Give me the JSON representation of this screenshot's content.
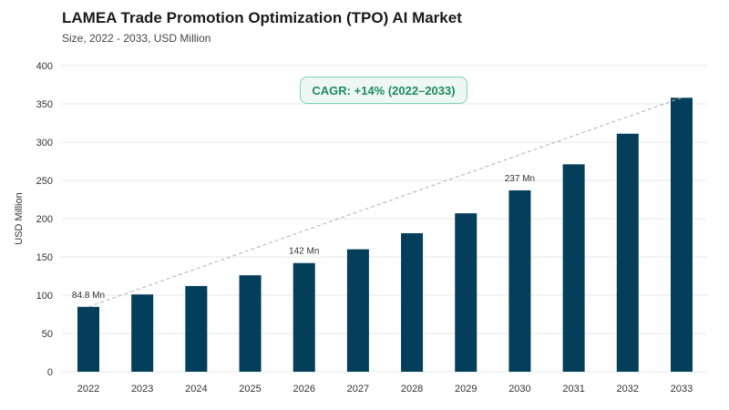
{
  "header": {
    "title": "LAMEA Trade Promotion Optimization (TPO) AI Market",
    "subtitle": "Size, 2022 - 2033, USD Million"
  },
  "annotation": {
    "cagr": "CAGR: +14% (2022–2033)"
  },
  "colors": {
    "bar": "#033e5b",
    "grid": "#e5e7eb",
    "trend": "#b0b0b0",
    "cagr_text": "#1e8a63",
    "cagr_border": "#7fd1b5"
  },
  "chart_data": {
    "type": "bar",
    "title": "LAMEA Trade Promotion Optimization (TPO) AI Market",
    "subtitle": "Size, 2022 - 2033, USD Million",
    "xlabel": "",
    "ylabel": "USD Million",
    "ylim": [
      0,
      400
    ],
    "yticks": [
      0,
      50,
      100,
      150,
      200,
      250,
      300,
      350,
      400
    ],
    "categories": [
      "2022",
      "2023",
      "2024",
      "2025",
      "2026",
      "2027",
      "2028",
      "2029",
      "2030",
      "2031",
      "2032",
      "2033"
    ],
    "values": [
      84.8,
      101,
      112,
      126,
      142,
      160,
      181,
      207,
      237,
      271,
      311,
      358
    ],
    "data_labels": [
      {
        "index": 0,
        "text": "84.8 Mn"
      },
      {
        "index": 4,
        "text": "142 Mn"
      },
      {
        "index": 8,
        "text": "237 Mn"
      }
    ],
    "trend_line": true,
    "grid": true,
    "legend": "none"
  }
}
